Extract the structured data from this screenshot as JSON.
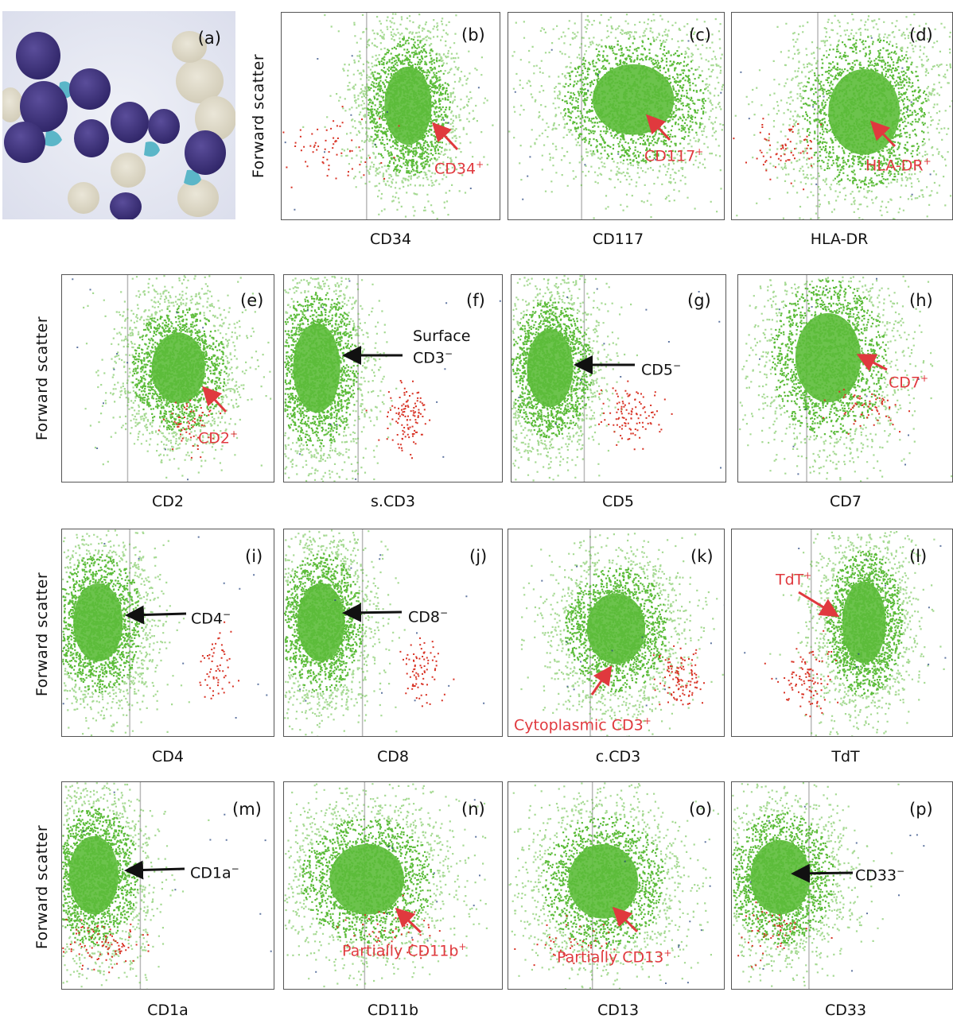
{
  "figure": {
    "colors": {
      "population": "#5cbc3a",
      "tcell": "#d83224",
      "minor": "#1f3f7a",
      "gate_line": "#b8b8b8",
      "annotation_red": "#e0393e"
    }
  },
  "photo": {
    "label": "(a)",
    "description_icon": "blast-cells-micrograph"
  },
  "y_axis_label": "Forward  scatter",
  "panels": [
    {
      "id": "b",
      "label": "(b)",
      "xlabel": "CD34",
      "ann": {
        "text": "CD34",
        "sup": "+",
        "color": "red"
      }
    },
    {
      "id": "c",
      "label": "(c)",
      "xlabel": "CD117",
      "ann": {
        "text": "CD117",
        "sup": "+",
        "color": "red"
      }
    },
    {
      "id": "d",
      "label": "(d)",
      "xlabel": "HLA-DR",
      "ann": {
        "text": "HLA-DR",
        "sup": "+",
        "color": "red"
      }
    },
    {
      "id": "e",
      "label": "(e)",
      "xlabel": "CD2",
      "ann": {
        "text": "CD2",
        "sup": "+",
        "color": "red"
      }
    },
    {
      "id": "f",
      "label": "(f)",
      "xlabel": "s.CD3",
      "ann": {
        "line1": "Surface",
        "text": "CD3",
        "sup": "−",
        "color": "black"
      }
    },
    {
      "id": "g",
      "label": "(g)",
      "xlabel": "CD5",
      "ann": {
        "text": "CD5",
        "sup": "−",
        "color": "black"
      }
    },
    {
      "id": "h",
      "label": "(h)",
      "xlabel": "CD7",
      "ann": {
        "text": "CD7",
        "sup": "+",
        "color": "red"
      }
    },
    {
      "id": "i",
      "label": "(i)",
      "xlabel": "CD4",
      "ann": {
        "text": "CD4",
        "sup": "−",
        "color": "black"
      }
    },
    {
      "id": "j",
      "label": "(j)",
      "xlabel": "CD8",
      "ann": {
        "text": "CD8",
        "sup": "−",
        "color": "black"
      }
    },
    {
      "id": "k",
      "label": "(k)",
      "xlabel": "c.CD3",
      "ann": {
        "text": "Cytoplasmic CD3",
        "sup": "+",
        "color": "red"
      }
    },
    {
      "id": "l",
      "label": "(l)",
      "xlabel": "TdT",
      "ann": {
        "text": "TdT",
        "sup": "+",
        "color": "red"
      }
    },
    {
      "id": "m",
      "label": "(m)",
      "xlabel": "CD1a",
      "ann": {
        "text": "CD1a",
        "sup": "−",
        "color": "black"
      }
    },
    {
      "id": "n",
      "label": "(n)",
      "xlabel": "CD11b",
      "ann": {
        "text": "Partially CD11b",
        "sup": "+",
        "color": "red"
      }
    },
    {
      "id": "o",
      "label": "(o)",
      "xlabel": "CD13",
      "ann": {
        "text": "Partially CD13",
        "sup": "+",
        "color": "red"
      }
    },
    {
      "id": "p",
      "label": "(p)",
      "xlabel": "CD33",
      "ann": {
        "text": "CD33",
        "sup": "−",
        "color": "black"
      }
    }
  ],
  "chart_data": {
    "type": "scatter",
    "y_axis": "Forward scatter",
    "marker_status": [
      {
        "marker": "CD34",
        "result": "positive"
      },
      {
        "marker": "CD117",
        "result": "positive"
      },
      {
        "marker": "HLA-DR",
        "result": "positive"
      },
      {
        "marker": "CD2",
        "result": "positive"
      },
      {
        "marker": "s.CD3",
        "result": "negative"
      },
      {
        "marker": "CD5",
        "result": "negative"
      },
      {
        "marker": "CD7",
        "result": "positive"
      },
      {
        "marker": "CD4",
        "result": "negative"
      },
      {
        "marker": "CD8",
        "result": "negative"
      },
      {
        "marker": "c.CD3",
        "result": "positive"
      },
      {
        "marker": "TdT",
        "result": "positive"
      },
      {
        "marker": "CD1a",
        "result": "negative"
      },
      {
        "marker": "CD11b",
        "result": "partial"
      },
      {
        "marker": "CD13",
        "result": "partial"
      },
      {
        "marker": "CD33",
        "result": "negative"
      }
    ],
    "clusters": {
      "b": {
        "main": {
          "cx": 0.58,
          "cy": 0.45,
          "sx": 0.12,
          "sy": 0.21,
          "n": 2400
        },
        "red": {
          "cx": 0.23,
          "cy": 0.65,
          "sx": 0.12,
          "sy": 0.08,
          "n": 70
        },
        "gate": 0.39
      },
      "c": {
        "main": {
          "cx": 0.58,
          "cy": 0.42,
          "sx": 0.21,
          "sy": 0.19,
          "n": 2400
        },
        "red": null,
        "gate": 0.34
      },
      "d": {
        "main": {
          "cx": 0.6,
          "cy": 0.48,
          "sx": 0.18,
          "sy": 0.23,
          "n": 2400
        },
        "red": {
          "cx": 0.24,
          "cy": 0.66,
          "sx": 0.1,
          "sy": 0.07,
          "n": 70
        },
        "gate": 0.39
      },
      "e": {
        "main": {
          "cx": 0.55,
          "cy": 0.45,
          "sx": 0.14,
          "sy": 0.19,
          "n": 2400
        },
        "red": {
          "cx": 0.6,
          "cy": 0.72,
          "sx": 0.06,
          "sy": 0.07,
          "n": 60
        },
        "gate": 0.31
      },
      "f": {
        "main": {
          "cx": 0.15,
          "cy": 0.45,
          "sx": 0.12,
          "sy": 0.24,
          "n": 2400
        },
        "red": {
          "cx": 0.56,
          "cy": 0.68,
          "sx": 0.05,
          "sy": 0.08,
          "n": 120
        },
        "gate": 0.34
      },
      "g": {
        "main": {
          "cx": 0.18,
          "cy": 0.45,
          "sx": 0.12,
          "sy": 0.21,
          "n": 2400
        },
        "red": {
          "cx": 0.56,
          "cy": 0.68,
          "sx": 0.07,
          "sy": 0.07,
          "n": 110
        },
        "gate": 0.34
      },
      "h": {
        "main": {
          "cx": 0.42,
          "cy": 0.4,
          "sx": 0.17,
          "sy": 0.24,
          "n": 2400
        },
        "red": {
          "cx": 0.6,
          "cy": 0.64,
          "sx": 0.07,
          "sy": 0.06,
          "n": 60
        },
        "gate": 0.32
      },
      "i": {
        "main": {
          "cx": 0.17,
          "cy": 0.45,
          "sx": 0.13,
          "sy": 0.21,
          "n": 2400
        },
        "red": {
          "cx": 0.72,
          "cy": 0.65,
          "sx": 0.03,
          "sy": 0.09,
          "n": 60
        },
        "gate": 0.32
      },
      "j": {
        "main": {
          "cx": 0.17,
          "cy": 0.45,
          "sx": 0.12,
          "sy": 0.21,
          "n": 2400
        },
        "red": {
          "cx": 0.63,
          "cy": 0.68,
          "sx": 0.05,
          "sy": 0.08,
          "n": 80
        },
        "gate": 0.36
      },
      "k": {
        "main": {
          "cx": 0.5,
          "cy": 0.48,
          "sx": 0.15,
          "sy": 0.19,
          "n": 2400
        },
        "red": {
          "cx": 0.8,
          "cy": 0.7,
          "sx": 0.05,
          "sy": 0.07,
          "n": 110
        },
        "gate": 0.38
      },
      "l": {
        "main": {
          "cx": 0.6,
          "cy": 0.45,
          "sx": 0.11,
          "sy": 0.22,
          "n": 2400
        },
        "red": {
          "cx": 0.34,
          "cy": 0.72,
          "sx": 0.06,
          "sy": 0.08,
          "n": 100
        },
        "gate": 0.36
      },
      "m": {
        "main": {
          "cx": 0.15,
          "cy": 0.45,
          "sx": 0.13,
          "sy": 0.21,
          "n": 2400
        },
        "red": {
          "cx": 0.2,
          "cy": 0.78,
          "sx": 0.1,
          "sy": 0.05,
          "n": 90
        },
        "gate": 0.37
      },
      "n": {
        "main": {
          "cx": 0.38,
          "cy": 0.47,
          "sx": 0.19,
          "sy": 0.19,
          "n": 2400
        },
        "red": {
          "cx": 0.5,
          "cy": 0.72,
          "sx": 0.12,
          "sy": 0.06,
          "n": 50
        },
        "gate": 0.37
      },
      "o": {
        "main": {
          "cx": 0.44,
          "cy": 0.48,
          "sx": 0.18,
          "sy": 0.2,
          "n": 2400
        },
        "red": {
          "cx": 0.32,
          "cy": 0.78,
          "sx": 0.12,
          "sy": 0.05,
          "n": 40
        },
        "gate": 0.39
      },
      "p": {
        "main": {
          "cx": 0.22,
          "cy": 0.46,
          "sx": 0.15,
          "sy": 0.2,
          "n": 2400
        },
        "red": {
          "cx": 0.18,
          "cy": 0.72,
          "sx": 0.08,
          "sy": 0.06,
          "n": 50
        },
        "gate": 0.35
      }
    }
  }
}
